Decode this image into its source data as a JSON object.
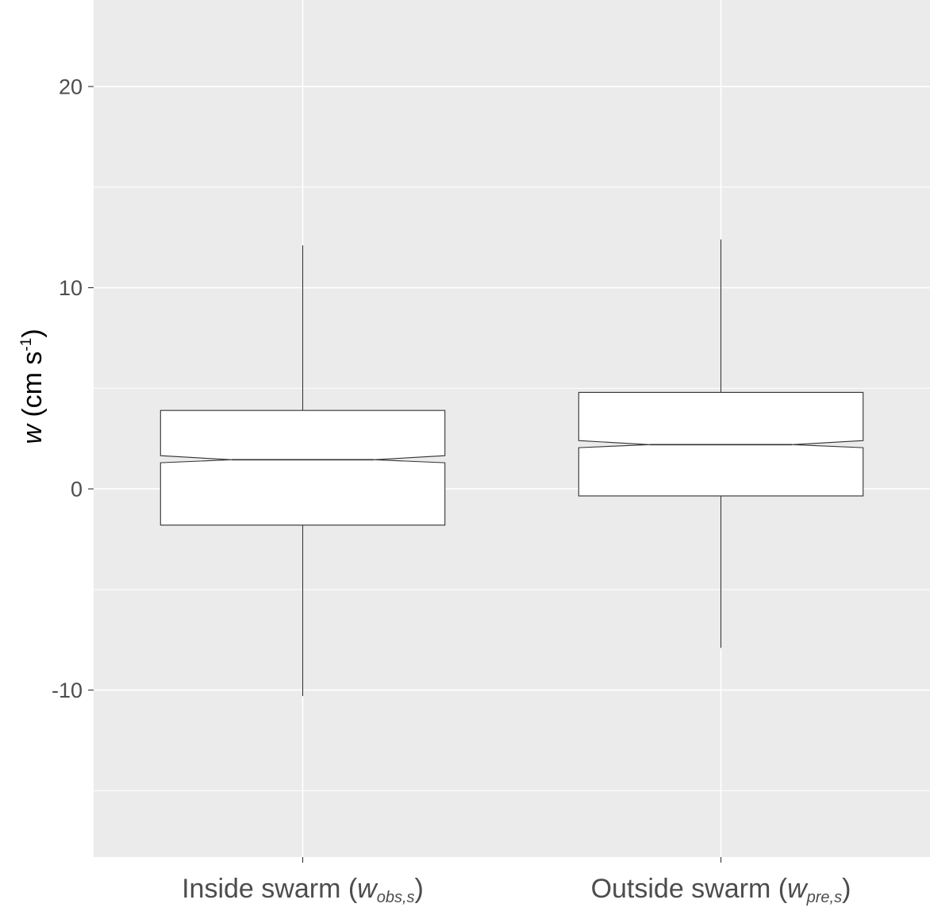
{
  "chart_data": {
    "type": "boxplot",
    "notched": true,
    "ylabel": {
      "var": "w",
      "units_open": " (cm s",
      "units_sup": "-1",
      "units_close": ")"
    },
    "ylim": [
      -18.3,
      24.3
    ],
    "yticks": [
      -10,
      0,
      10,
      20
    ],
    "ytick_labels": [
      "-10",
      "0",
      "10",
      "20"
    ],
    "categories": [
      {
        "prefix": "Inside swarm (",
        "var": "w",
        "sub": "obs,s",
        "suffix": ")"
      },
      {
        "prefix": "Outside swarm (",
        "var": "w",
        "sub": "pre,s",
        "suffix": ")"
      }
    ],
    "boxes": [
      {
        "whisker_low": -10.3,
        "q1": -1.8,
        "notch_low": 1.3,
        "median": 1.45,
        "notch_high": 1.65,
        "q3": 3.9,
        "whisker_high": 12.1
      },
      {
        "whisker_low": -7.9,
        "q1": -0.35,
        "notch_low": 2.05,
        "median": 2.2,
        "notch_high": 2.4,
        "q3": 4.8,
        "whisker_high": 12.4
      }
    ],
    "grid": true,
    "legend": "none",
    "colors": {
      "panel_bg": "#ebebeb",
      "grid": "#ffffff",
      "box_fill": "#ffffff",
      "box_stroke": "#333333",
      "tick_text": "#4d4d4d"
    }
  }
}
